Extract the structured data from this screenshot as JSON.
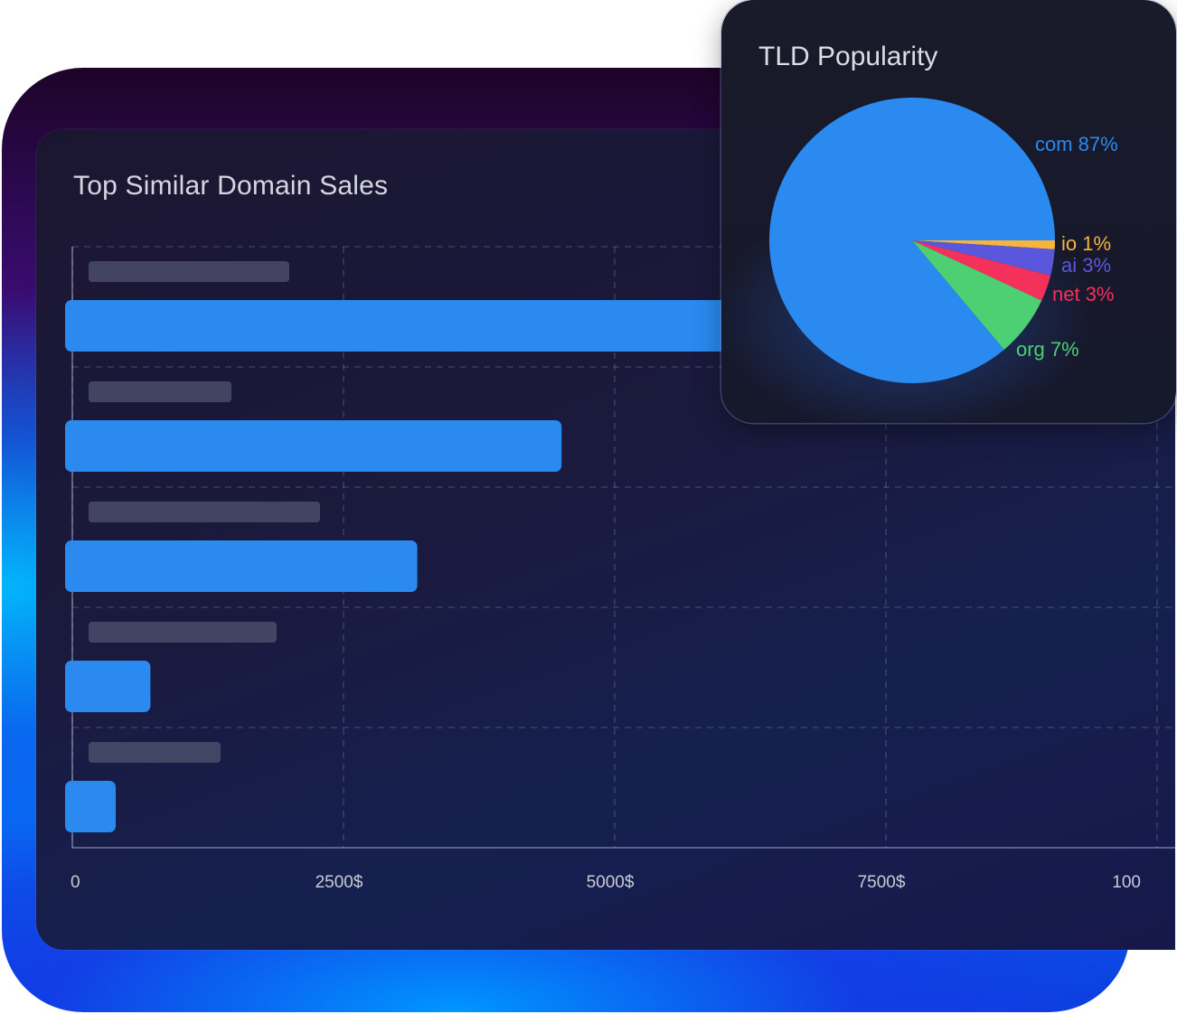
{
  "chart_data": [
    {
      "type": "bar",
      "orientation": "horizontal",
      "title": "Top Similar Domain Sales",
      "categories": [
        "",
        "",
        "",
        "",
        ""
      ],
      "values": [
        7000,
        4510,
        3180,
        720,
        400
      ],
      "x_ticks": [
        "0",
        "2500$",
        "5000$",
        "7500$",
        "100"
      ],
      "xlim": [
        0,
        10000
      ],
      "grid": true,
      "bar_color": "#2a8af0",
      "placeholder_color": "#4a4c6a"
    },
    {
      "type": "pie",
      "title": "TLD Popularity",
      "slices": [
        {
          "name": "com",
          "label": "com 87%",
          "value": 87,
          "color": "#2a8af0"
        },
        {
          "name": "io",
          "label": "io 1%",
          "value": 1,
          "color": "#f7b33b"
        },
        {
          "name": "ai",
          "label": "ai 3%",
          "value": 3,
          "color": "#5a57dc"
        },
        {
          "name": "net",
          "label": "net 3%",
          "value": 3,
          "color": "#f4315a"
        },
        {
          "name": "org",
          "label": "org 7%",
          "value": 7,
          "color": "#4dcf74"
        }
      ]
    }
  ]
}
